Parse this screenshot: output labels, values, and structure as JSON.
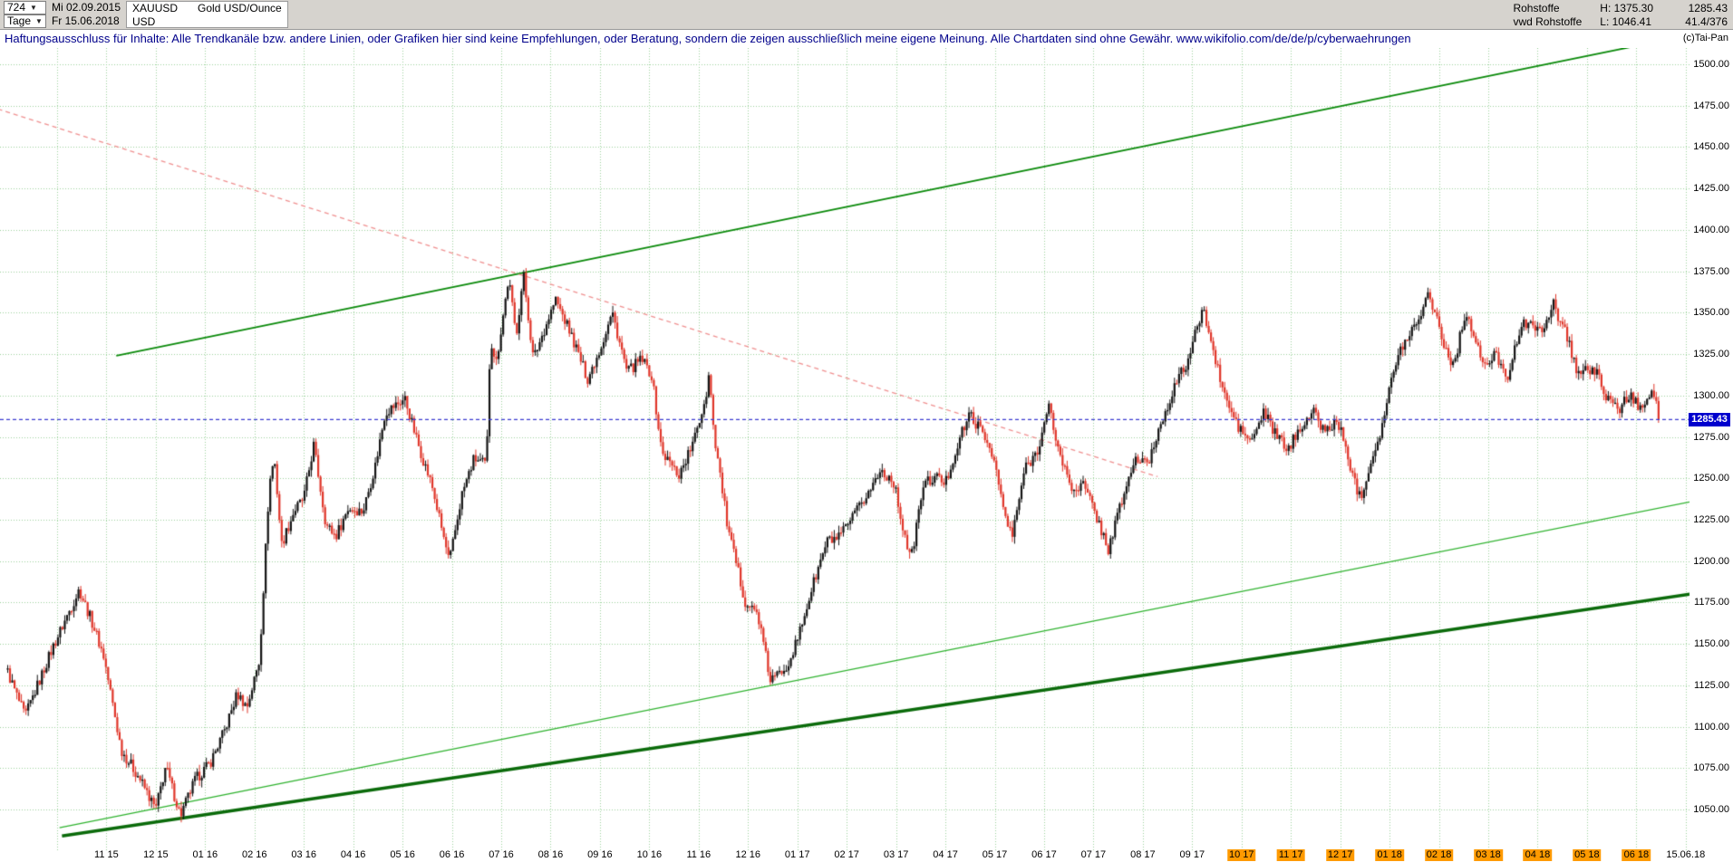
{
  "header": {
    "bars_count": "724",
    "timeframe": "Tage",
    "start_date": "Mi 02.09.2015",
    "end_date": "Fr 15.06.2018",
    "symbol": "XAUUSD",
    "currency": "USD",
    "instrument_name": "Gold USD/Ounce",
    "category": "Rohstoffe",
    "feed": "vwd Rohstoffe",
    "period_high": "H: 1375.30",
    "period_low": "L: 1046.41",
    "last_price": "1285.43",
    "change_info": "41.4/376",
    "copyright": "(c)Tai-Pan"
  },
  "disclaimer": "Haftungsausschluss für Inhalte: Alle Trendkanäle bzw. andere Linien, oder Grafiken hier sind keine Empfehlungen, oder Beratung, sondern die zeigen ausschließlich meine eigene Meinung. Alle Chartdaten sind ohne Gewähr.  www.wikifolio.com/de/de/p/cyberwaehrungen",
  "chart_data": {
    "type": "candlestick",
    "title": "Gold USD/Ounce (XAUUSD), Tage",
    "xlabel": "",
    "ylabel": "",
    "period": "02.09.2015 - 15.06.2018",
    "bars": 724,
    "t_range": [
      0,
      33.45
    ],
    "current_price": 1285.43,
    "current_price_label": "1285.43",
    "period_high": 1375.3,
    "period_low": 1046.41,
    "grid": true,
    "y_axis": {
      "min": 1050,
      "max": 1500,
      "step": 25,
      "labels": [
        "1500.00",
        "1475.00",
        "1450.00",
        "1425.00",
        "1400.00",
        "1375.00",
        "1350.00",
        "1325.00",
        "1300.00",
        "1275.00",
        "1250.00",
        "1225.00",
        "1200.00",
        "1175.00",
        "1150.00",
        "1125.00",
        "1100.00",
        "1075.00",
        "1050.00"
      ]
    },
    "x_axis": {
      "unit": "months from 2015-09",
      "ticks": [
        {
          "t": 2,
          "label": "11 15",
          "highlight": false
        },
        {
          "t": 3,
          "label": "12 15",
          "highlight": false
        },
        {
          "t": 4,
          "label": "01 16",
          "highlight": false
        },
        {
          "t": 5,
          "label": "02 16",
          "highlight": false
        },
        {
          "t": 6,
          "label": "03 16",
          "highlight": false
        },
        {
          "t": 7,
          "label": "04 16",
          "highlight": false
        },
        {
          "t": 8,
          "label": "05 16",
          "highlight": false
        },
        {
          "t": 9,
          "label": "06 16",
          "highlight": false
        },
        {
          "t": 10,
          "label": "07 16",
          "highlight": false
        },
        {
          "t": 11,
          "label": "08 16",
          "highlight": false
        },
        {
          "t": 12,
          "label": "09 16",
          "highlight": false
        },
        {
          "t": 13,
          "label": "10 16",
          "highlight": false
        },
        {
          "t": 14,
          "label": "11 16",
          "highlight": false
        },
        {
          "t": 15,
          "label": "12 16",
          "highlight": false
        },
        {
          "t": 16,
          "label": "01 17",
          "highlight": false
        },
        {
          "t": 17,
          "label": "02 17",
          "highlight": false
        },
        {
          "t": 18,
          "label": "03 17",
          "highlight": false
        },
        {
          "t": 19,
          "label": "04 17",
          "highlight": false
        },
        {
          "t": 20,
          "label": "05 17",
          "highlight": false
        },
        {
          "t": 21,
          "label": "06 17",
          "highlight": false
        },
        {
          "t": 22,
          "label": "07 17",
          "highlight": false
        },
        {
          "t": 23,
          "label": "08 17",
          "highlight": false
        },
        {
          "t": 24,
          "label": "09 17",
          "highlight": false
        },
        {
          "t": 25,
          "label": "10 17",
          "highlight": true
        },
        {
          "t": 26,
          "label": "11 17",
          "highlight": true
        },
        {
          "t": 27,
          "label": "12 17",
          "highlight": true
        },
        {
          "t": 28,
          "label": "01 18",
          "highlight": true
        },
        {
          "t": 29,
          "label": "02 18",
          "highlight": true
        },
        {
          "t": 30,
          "label": "03 18",
          "highlight": true
        },
        {
          "t": 31,
          "label": "04 18",
          "highlight": true
        },
        {
          "t": 32,
          "label": "05 18",
          "highlight": true
        },
        {
          "t": 33,
          "label": "06 18",
          "highlight": true
        },
        {
          "t": 34,
          "label": "15.06.18",
          "highlight": false
        }
      ]
    },
    "series_anchor_points": [
      [
        0.0,
        1133
      ],
      [
        0.35,
        1106
      ],
      [
        0.9,
        1147
      ],
      [
        1.45,
        1183
      ],
      [
        1.75,
        1160
      ],
      [
        1.95,
        1142
      ],
      [
        2.3,
        1086
      ],
      [
        2.65,
        1070
      ],
      [
        3.0,
        1050
      ],
      [
        3.2,
        1076
      ],
      [
        3.5,
        1046.4
      ],
      [
        3.8,
        1068
      ],
      [
        4.1,
        1078
      ],
      [
        4.4,
        1098
      ],
      [
        4.65,
        1120
      ],
      [
        4.85,
        1112
      ],
      [
        5.1,
        1140
      ],
      [
        5.3,
        1246
      ],
      [
        5.4,
        1263
      ],
      [
        5.55,
        1210
      ],
      [
        5.8,
        1230
      ],
      [
        6.0,
        1238
      ],
      [
        6.2,
        1270
      ],
      [
        6.45,
        1222
      ],
      [
        6.65,
        1215
      ],
      [
        6.9,
        1232
      ],
      [
        7.2,
        1230
      ],
      [
        7.45,
        1258
      ],
      [
        7.65,
        1290
      ],
      [
        8.05,
        1298
      ],
      [
        8.3,
        1272
      ],
      [
        8.6,
        1245
      ],
      [
        8.95,
        1199
      ],
      [
        9.2,
        1240
      ],
      [
        9.45,
        1262
      ],
      [
        9.7,
        1258
      ],
      [
        9.78,
        1335
      ],
      [
        9.9,
        1320
      ],
      [
        10.15,
        1371
      ],
      [
        10.3,
        1336
      ],
      [
        10.45,
        1373
      ],
      [
        10.65,
        1322
      ],
      [
        10.9,
        1342
      ],
      [
        11.1,
        1358
      ],
      [
        11.4,
        1338
      ],
      [
        11.75,
        1310
      ],
      [
        12.0,
        1328
      ],
      [
        12.25,
        1350
      ],
      [
        12.55,
        1314
      ],
      [
        12.85,
        1322
      ],
      [
        13.05,
        1312
      ],
      [
        13.25,
        1266
      ],
      [
        13.6,
        1252
      ],
      [
        13.9,
        1272
      ],
      [
        14.15,
        1300
      ],
      [
        14.22,
        1316
      ],
      [
        14.3,
        1280
      ],
      [
        14.6,
        1218
      ],
      [
        14.95,
        1175
      ],
      [
        15.2,
        1168
      ],
      [
        15.45,
        1128
      ],
      [
        15.6,
        1131
      ],
      [
        15.8,
        1138
      ],
      [
        16.0,
        1152
      ],
      [
        16.3,
        1184
      ],
      [
        16.6,
        1212
      ],
      [
        16.85,
        1214
      ],
      [
        17.1,
        1225
      ],
      [
        17.35,
        1237
      ],
      [
        17.7,
        1255
      ],
      [
        17.95,
        1248
      ],
      [
        18.1,
        1226
      ],
      [
        18.3,
        1200
      ],
      [
        18.55,
        1246
      ],
      [
        18.8,
        1251
      ],
      [
        19.0,
        1247
      ],
      [
        19.3,
        1275
      ],
      [
        19.5,
        1289
      ],
      [
        19.75,
        1277
      ],
      [
        19.95,
        1266
      ],
      [
        20.2,
        1228
      ],
      [
        20.35,
        1214
      ],
      [
        20.6,
        1255
      ],
      [
        20.85,
        1266
      ],
      [
        21.1,
        1293
      ],
      [
        21.3,
        1266
      ],
      [
        21.55,
        1244
      ],
      [
        21.8,
        1246
      ],
      [
        22.05,
        1228
      ],
      [
        22.3,
        1207
      ],
      [
        22.55,
        1234
      ],
      [
        22.85,
        1262
      ],
      [
        23.1,
        1258
      ],
      [
        23.35,
        1282
      ],
      [
        23.65,
        1306
      ],
      [
        23.9,
        1320
      ],
      [
        24.15,
        1346
      ],
      [
        24.25,
        1351
      ],
      [
        24.45,
        1323
      ],
      [
        24.7,
        1296
      ],
      [
        24.95,
        1280
      ],
      [
        25.2,
        1272
      ],
      [
        25.45,
        1290
      ],
      [
        25.7,
        1276
      ],
      [
        25.95,
        1267
      ],
      [
        26.2,
        1282
      ],
      [
        26.45,
        1290
      ],
      [
        26.7,
        1278
      ],
      [
        26.95,
        1285
      ],
      [
        27.15,
        1263
      ],
      [
        27.4,
        1238
      ],
      [
        27.6,
        1258
      ],
      [
        27.85,
        1282
      ],
      [
        28.0,
        1305
      ],
      [
        28.25,
        1330
      ],
      [
        28.5,
        1342
      ],
      [
        28.8,
        1362
      ],
      [
        29.0,
        1343
      ],
      [
        29.1,
        1330
      ],
      [
        29.3,
        1318
      ],
      [
        29.55,
        1352
      ],
      [
        29.75,
        1330
      ],
      [
        29.95,
        1317
      ],
      [
        30.15,
        1325
      ],
      [
        30.4,
        1312
      ],
      [
        30.65,
        1340
      ],
      [
        30.85,
        1347
      ],
      [
        31.1,
        1335
      ],
      [
        31.3,
        1358
      ],
      [
        31.45,
        1345
      ],
      [
        31.6,
        1336
      ],
      [
        31.8,
        1314
      ],
      [
        32.0,
        1316
      ],
      [
        32.25,
        1312
      ],
      [
        32.45,
        1295
      ],
      [
        32.65,
        1292
      ],
      [
        32.85,
        1300
      ],
      [
        33.05,
        1294
      ],
      [
        33.2,
        1298
      ],
      [
        33.35,
        1302
      ],
      [
        33.42,
        1296
      ],
      [
        33.45,
        1285.4
      ]
    ],
    "trendlines": [
      {
        "name": "rising-resistance-green",
        "t1": 2.2,
        "p1": 1324,
        "t2": 34.3,
        "p2": 1519,
        "color": "trend_green_upper",
        "width": 1.8,
        "dash": null
      },
      {
        "name": "rising-support-thin-green",
        "t1": 1.05,
        "p1": 1039,
        "t2": 34.3,
        "p2": 1237,
        "color": "trend_green_support",
        "width": 1.2,
        "dash": null
      },
      {
        "name": "rising-support-major-green",
        "t1": 1.1,
        "p1": 1034,
        "t2": 34.3,
        "p2": 1181,
        "color": "trend_green_major",
        "width": 3.5,
        "dash": null
      },
      {
        "name": "falling-resistance-red-dashed",
        "t1": -0.2,
        "p1": 1473,
        "t2": 23.3,
        "p2": 1251,
        "color": "resistance_red",
        "width": 1.3,
        "dash": [
          5,
          4
        ]
      }
    ],
    "colors": {
      "up": "#141414",
      "down": "#e0362a",
      "grid": "#9bd49b",
      "trend_green_upper": "#0a8a0a",
      "trend_green_support": "#2db22d",
      "trend_green_major": "#0b6b0b",
      "resistance_red": "#f09090",
      "current_price_line": "#3b3bd0",
      "price_tag_bg": "#0000cd",
      "date_highlight": "#ff9a00"
    },
    "legend": null
  }
}
